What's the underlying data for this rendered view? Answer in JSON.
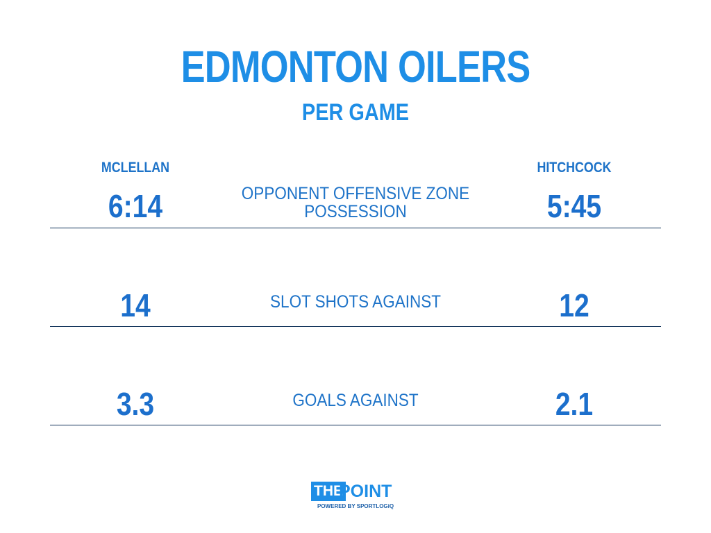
{
  "header": {
    "title": "EDMONTON OILERS",
    "subtitle": "PER GAME"
  },
  "coaches": {
    "left": "MCLELLAN",
    "right": "HITCHCOCK"
  },
  "rows": [
    {
      "label_line1": "OPPONENT OFFENSIVE ZONE",
      "label_line2": "POSSESSION",
      "left_value": "6:14",
      "right_value": "5:45"
    },
    {
      "label_line1": "SLOT SHOTS AGAINST",
      "label_line2": "",
      "left_value": "14",
      "right_value": "12"
    },
    {
      "label_line1": "GOALS AGAINST",
      "label_line2": "",
      "left_value": "3.3",
      "right_value": "2.1"
    }
  ],
  "logo": {
    "the": "THE",
    "point": "POINT",
    "powered_by": "POWERED BY SPORTLOGiQ"
  },
  "colors": {
    "accent": "#1e8ee6",
    "text": "#1e73c8",
    "rule": "#0d2f57"
  }
}
